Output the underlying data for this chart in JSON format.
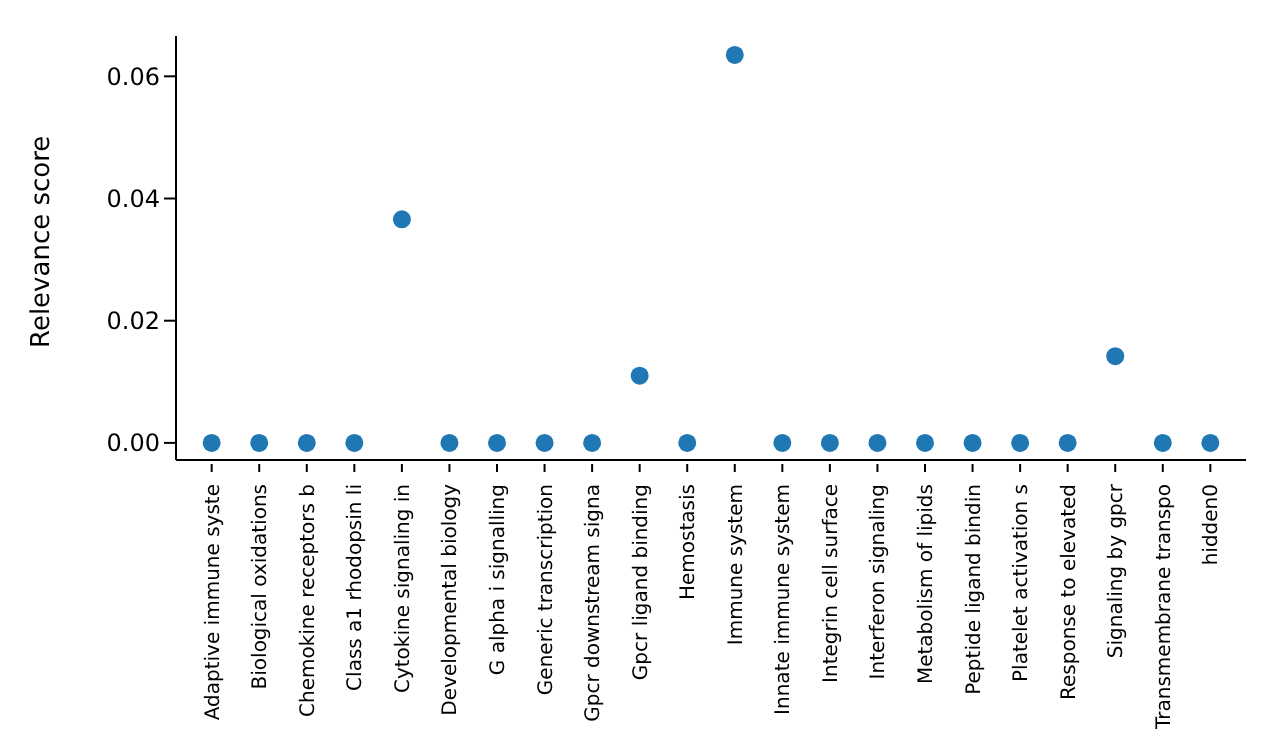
{
  "chart_data": {
    "type": "scatter",
    "ylabel": "Relevance score",
    "categories": [
      "Adaptive immune syste",
      "Biological oxidations",
      "Chemokine receptors b",
      "Class a1 rhodopsin li",
      "Cytokine signaling in",
      "Developmental biology",
      "G alpha i signalling",
      "Generic transcription",
      "Gpcr downstream signa",
      "Gpcr ligand binding",
      "Hemostasis",
      "Immune system",
      "Innate immune system",
      "Integrin cell surface",
      "Interferon signaling",
      "Metabolism of lipids",
      "Peptide ligand bindin",
      "Platelet activation s",
      "Response to elevated",
      "Signaling by gpcr",
      "Transmembrane transpo",
      "hidden0"
    ],
    "series": [
      {
        "color": "#1f77b4",
        "values": [
          0,
          0,
          0,
          0,
          0.0366,
          0,
          0,
          0,
          0,
          0.011,
          0,
          0.0635,
          0,
          0,
          0,
          0,
          0,
          0,
          0,
          0.0142,
          0,
          0
        ]
      }
    ],
    "ylim": [
      -0.0028,
      0.0666
    ],
    "yticks": [
      {
        "value": 0,
        "label": "0.00"
      },
      {
        "value": 0.02,
        "label": "0.02"
      },
      {
        "value": 0.04,
        "label": "0.04"
      },
      {
        "value": 0.06,
        "label": "0.06"
      }
    ],
    "marker": "circle",
    "grid": false,
    "legend": false
  }
}
